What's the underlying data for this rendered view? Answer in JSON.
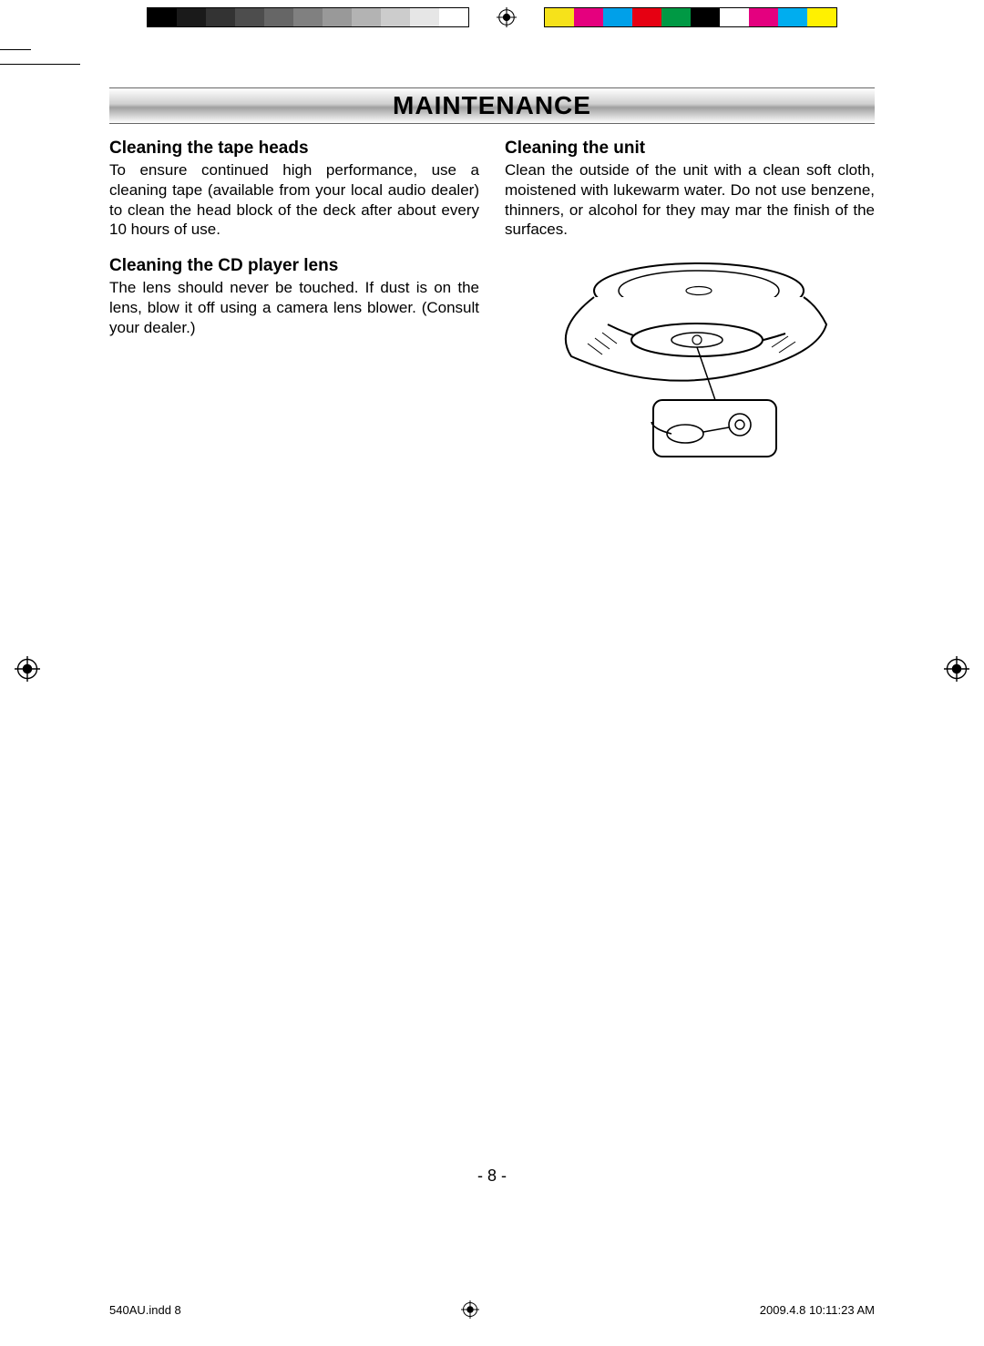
{
  "print_marks": {
    "greyscale_swatches": [
      "#000000",
      "#1a1a1a",
      "#333333",
      "#4d4d4d",
      "#666666",
      "#808080",
      "#999999",
      "#b3b3b3",
      "#cccccc",
      "#e6e6e6",
      "#ffffff"
    ],
    "color_swatches": [
      "#f6e21a",
      "#e5007e",
      "#00a0e9",
      "#e60012",
      "#009944",
      "#000000",
      "#ffffff",
      "#e4007f",
      "#00adef",
      "#fff100"
    ]
  },
  "header": {
    "title": "MAINTENANCE",
    "border_color": "#666666",
    "title_fontsize": 28
  },
  "left_col": {
    "block1": {
      "title": "Cleaning the tape heads",
      "body": "To ensure continued high performance, use a cleaning tape (available from your local audio dealer) to clean the head block of the deck after about every 10 hours of use."
    },
    "block2": {
      "title": "Cleaning the CD player lens",
      "body": "The lens should never be touched. If dust is on the lens, blow it off using a camera lens blower. (Consult your dealer.)"
    }
  },
  "right_col": {
    "block1": {
      "title": "Cleaning the unit",
      "body": "Clean the outside of the unit with a clean soft cloth, moistened with lukewarm water. Do not use benzene, thinners, or alcohol for they may mar the finish of the surfaces."
    }
  },
  "page_number": "- 8 -",
  "footer": {
    "left": "540AU.indd   8",
    "right": "2009.4.8   10:11:23 AM"
  },
  "typography": {
    "title_fontsize": 19,
    "body_fontsize": 17,
    "footer_fontsize": 13,
    "font_family": "Arial"
  },
  "colors": {
    "text": "#000000",
    "background": "#ffffff"
  }
}
